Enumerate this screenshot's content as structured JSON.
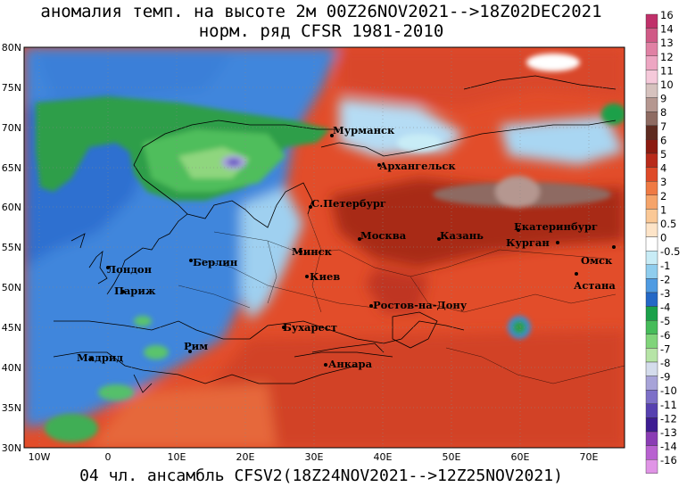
{
  "title_line1": "аномалия темп. на высоте 2м 00Z26NOV2021-->18Z02DEC2021",
  "title_line2": "норм. ряд CFSR 1981-2010",
  "footer": "04 чл. ансамбль CFSV2(18Z24NOV2021-->12Z25NOV2021)",
  "lat_ticks": [
    "80N",
    "75N",
    "70N",
    "65N",
    "60N",
    "55N",
    "50N",
    "45N",
    "40N",
    "35N",
    "30N"
  ],
  "lon_ticks": [
    "10W",
    "0",
    "10E",
    "20E",
    "30E",
    "40E",
    "50E",
    "60E",
    "70E"
  ],
  "cities": {
    "murmansk": "Мурманск",
    "arkhangelsk": "Архангельск",
    "spb": "С.Петербург",
    "moscow": "Москва",
    "kazan": "Казань",
    "yekaterinburg": "Екатеринбург",
    "kurgan": "Курган",
    "omsk": "Омск",
    "astana": "Астана",
    "minsk": "Минск",
    "kiev": "Киев",
    "rostov": "Ростов-на-Дону",
    "berlin": "Берлин",
    "london": "Лондон",
    "paris": "Париж",
    "bucharest": "Бухарест",
    "rome": "Рим",
    "madrid": "Мадрид",
    "ankara": "Анкара"
  },
  "colorbar": {
    "labels": [
      "16",
      "14",
      "13",
      "12",
      "11",
      "10",
      "9",
      "8",
      "7",
      "6",
      "5",
      "4",
      "3",
      "2",
      "1",
      "0.5",
      "0",
      "-0.5",
      "-1",
      "-2",
      "-3",
      "-4",
      "-5",
      "-6",
      "-7",
      "-8",
      "-9",
      "-10",
      "-11",
      "-12",
      "-13",
      "-14",
      "-16"
    ],
    "colors": [
      "#c0306a",
      "#d05a86",
      "#e081a4",
      "#eda6c2",
      "#f5c9da",
      "#d6c2be",
      "#b59790",
      "#8e6b62",
      "#5e2b20",
      "#8b1a10",
      "#b82a1a",
      "#de4a28",
      "#ef7a44",
      "#f5a46a",
      "#fac896",
      "#fde4c8",
      "#ffffff",
      "#c8ecf6",
      "#8fcdee",
      "#4f9be2",
      "#2468c6",
      "#1aa04a",
      "#46bc5a",
      "#80d47a",
      "#b6e4a6",
      "#d4dcec",
      "#a7a3d8",
      "#7d70c8",
      "#5640b0",
      "#3d1c92",
      "#8a3cb4",
      "#b861d0",
      "#e094e6"
    ]
  }
}
